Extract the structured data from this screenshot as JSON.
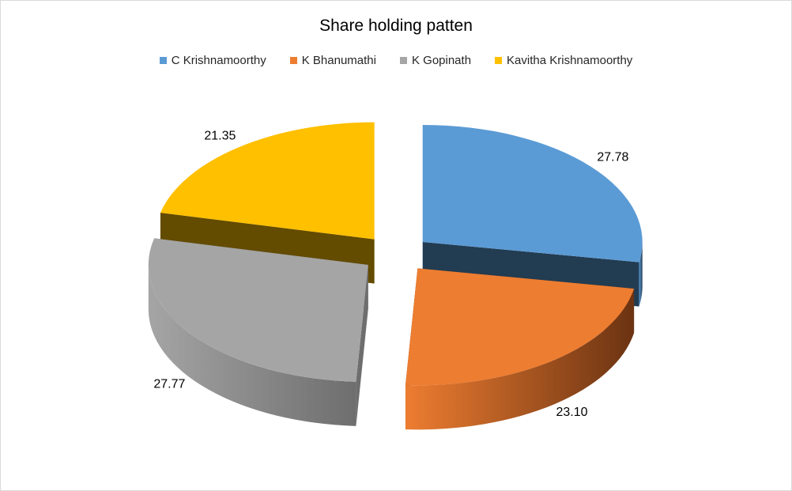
{
  "chart_data": {
    "type": "pie",
    "title": "Share holding patten",
    "legend_position": "top",
    "style": "3d-exploded",
    "categories": [
      "C Krishnamoorthy",
      "K Bhanumathi",
      "K Gopinath",
      "Kavitha Krishnamoorthy"
    ],
    "values": [
      27.78,
      23.1,
      27.77,
      21.35
    ],
    "data_labels": [
      "27.78",
      "23.10",
      "27.77",
      "21.35"
    ],
    "colors": [
      "#5B9BD5",
      "#ED7D31",
      "#A5A5A5",
      "#FFC000"
    ],
    "side_colors": [
      "#223C52",
      "#6B3312",
      "#6E6E6E",
      "#634B00"
    ]
  }
}
